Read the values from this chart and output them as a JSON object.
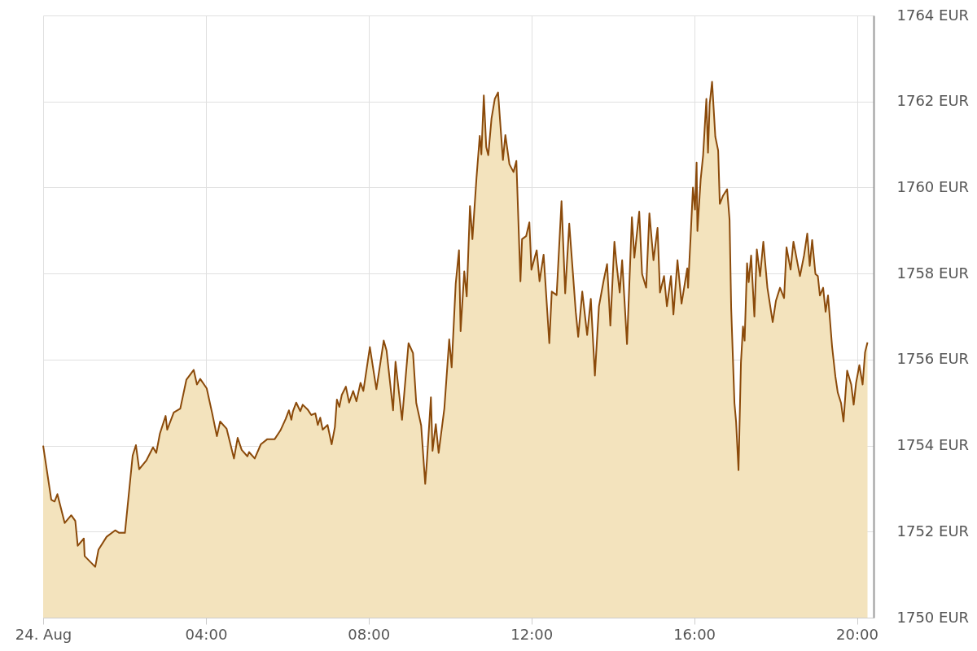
{
  "chart_data": {
    "type": "area",
    "xlim": [
      0,
      20.41
    ],
    "ylim": [
      1750,
      1764
    ],
    "xticks": [
      {
        "value": 0,
        "label": "24. Aug"
      },
      {
        "value": 4,
        "label": "04:00"
      },
      {
        "value": 8,
        "label": "08:00"
      },
      {
        "value": 12,
        "label": "12:00"
      },
      {
        "value": 16,
        "label": "16:00"
      },
      {
        "value": 20,
        "label": "20:00"
      }
    ],
    "yticks": [
      {
        "value": 1750,
        "label": "1750 EUR"
      },
      {
        "value": 1752,
        "label": "1752 EUR"
      },
      {
        "value": 1754,
        "label": "1754 EUR"
      },
      {
        "value": 1756,
        "label": "1756 EUR"
      },
      {
        "value": 1758,
        "label": "1758 EUR"
      },
      {
        "value": 1760,
        "label": "1760 EUR"
      },
      {
        "value": 1762,
        "label": "1762 EUR"
      },
      {
        "value": 1764,
        "label": "1764 EUR"
      }
    ],
    "grid": true,
    "series": [
      {
        "color": "#8b4a0a",
        "x": [
          0,
          0.2,
          0.28,
          0.35,
          0.53,
          0.69,
          0.79,
          0.85,
          1.0,
          1.02,
          1.28,
          1.36,
          1.56,
          1.77,
          1.87,
          2.01,
          2.2,
          2.28,
          2.36,
          2.54,
          2.7,
          2.78,
          2.87,
          3.01,
          3.05,
          3.21,
          3.37,
          3.52,
          3.7,
          3.78,
          3.86,
          4.02,
          4.15,
          4.27,
          4.35,
          4.51,
          4.69,
          4.78,
          4.88,
          5.02,
          5.06,
          5.2,
          5.35,
          5.51,
          5.69,
          5.83,
          5.96,
          6.04,
          6.1,
          6.14,
          6.22,
          6.32,
          6.38,
          6.5,
          6.59,
          6.69,
          6.75,
          6.81,
          6.87,
          6.99,
          7.09,
          7.17,
          7.22,
          7.28,
          7.34,
          7.44,
          7.52,
          7.62,
          7.7,
          7.8,
          7.87,
          8.03,
          8.19,
          8.37,
          8.44,
          8.6,
          8.66,
          8.82,
          8.98,
          9.09,
          9.17,
          9.29,
          9.39,
          9.43,
          9.53,
          9.57,
          9.65,
          9.72,
          9.86,
          9.98,
          10.04,
          10.14,
          10.22,
          10.26,
          10.35,
          10.41,
          10.49,
          10.55,
          10.65,
          10.73,
          10.77,
          10.83,
          10.89,
          10.94,
          11.02,
          11.1,
          11.18,
          11.3,
          11.36,
          11.46,
          11.56,
          11.63,
          11.73,
          11.77,
          11.87,
          11.95,
          12.0,
          12.13,
          12.2,
          12.3,
          12.44,
          12.5,
          12.62,
          12.74,
          12.83,
          12.93,
          13.09,
          13.15,
          13.25,
          13.37,
          13.46,
          13.56,
          13.66,
          13.78,
          13.86,
          13.94,
          14.04,
          14.09,
          14.17,
          14.23,
          14.35,
          14.47,
          14.53,
          14.65,
          14.72,
          14.82,
          14.9,
          15.0,
          15.1,
          15.16,
          15.26,
          15.33,
          15.43,
          15.49,
          15.59,
          15.69,
          15.83,
          15.85,
          15.91,
          15.97,
          16.02,
          16.06,
          16.08,
          16.16,
          16.22,
          16.3,
          16.34,
          16.38,
          16.44,
          16.52,
          16.59,
          16.63,
          16.71,
          16.81,
          16.87,
          16.91,
          16.99,
          17.03,
          17.09,
          17.15,
          17.2,
          17.24,
          17.3,
          17.34,
          17.4,
          17.48,
          17.54,
          17.62,
          17.7,
          17.8,
          17.93,
          18.01,
          18.11,
          18.21,
          18.27,
          18.37,
          18.44,
          18.6,
          18.7,
          18.78,
          18.84,
          18.9,
          18.98,
          19.04,
          19.09,
          19.17,
          19.23,
          19.29,
          19.39,
          19.47,
          19.53,
          19.61,
          19.67,
          19.76,
          19.86,
          19.92,
          19.98,
          20.06,
          20.14,
          20.2,
          20.26
        ],
        "values": [
          1754.0,
          1752.74,
          1752.7,
          1752.87,
          1752.2,
          1752.38,
          1752.25,
          1751.67,
          1751.84,
          1751.43,
          1751.18,
          1751.58,
          1751.88,
          1752.03,
          1751.97,
          1751.97,
          1753.77,
          1754.01,
          1753.45,
          1753.66,
          1753.96,
          1753.83,
          1754.28,
          1754.69,
          1754.37,
          1754.77,
          1754.86,
          1755.53,
          1755.76,
          1755.42,
          1755.55,
          1755.33,
          1754.77,
          1754.22,
          1754.56,
          1754.39,
          1753.7,
          1754.18,
          1753.9,
          1753.75,
          1753.85,
          1753.7,
          1754.03,
          1754.15,
          1754.15,
          1754.35,
          1754.62,
          1754.82,
          1754.6,
          1754.8,
          1755.0,
          1754.8,
          1754.95,
          1754.84,
          1754.71,
          1754.75,
          1754.48,
          1754.65,
          1754.37,
          1754.48,
          1754.03,
          1754.43,
          1755.07,
          1754.9,
          1755.18,
          1755.37,
          1755.0,
          1755.27,
          1755.03,
          1755.46,
          1755.27,
          1756.29,
          1755.31,
          1756.44,
          1756.21,
          1754.82,
          1755.95,
          1754.6,
          1756.38,
          1756.15,
          1754.99,
          1754.47,
          1753.11,
          1753.62,
          1755.12,
          1753.88,
          1754.5,
          1753.83,
          1754.86,
          1756.47,
          1755.82,
          1757.77,
          1758.54,
          1756.66,
          1758.05,
          1757.47,
          1759.57,
          1758.8,
          1760.22,
          1761.2,
          1760.77,
          1762.14,
          1760.94,
          1760.75,
          1761.61,
          1762.06,
          1762.21,
          1760.64,
          1761.22,
          1760.54,
          1760.36,
          1760.62,
          1757.82,
          1758.8,
          1758.87,
          1759.19,
          1758.09,
          1758.54,
          1757.82,
          1758.44,
          1756.38,
          1757.58,
          1757.5,
          1759.68,
          1757.54,
          1759.16,
          1757.11,
          1756.53,
          1757.58,
          1756.57,
          1757.41,
          1755.63,
          1757.24,
          1757.86,
          1758.22,
          1756.79,
          1758.74,
          1758.24,
          1757.56,
          1758.31,
          1756.36,
          1759.31,
          1758.37,
          1759.44,
          1757.99,
          1757.67,
          1759.4,
          1758.31,
          1759.06,
          1757.56,
          1757.94,
          1757.24,
          1757.94,
          1757.05,
          1758.31,
          1757.3,
          1758.12,
          1757.67,
          1758.8,
          1760.0,
          1759.49,
          1760.58,
          1758.99,
          1760.19,
          1760.75,
          1762.06,
          1760.81,
          1761.93,
          1762.46,
          1761.18,
          1760.86,
          1759.62,
          1759.81,
          1759.96,
          1759.25,
          1757.19,
          1754.99,
          1754.56,
          1753.43,
          1755.93,
          1756.77,
          1756.44,
          1758.24,
          1757.8,
          1758.42,
          1757.0,
          1758.56,
          1757.94,
          1758.74,
          1757.67,
          1756.87,
          1757.37,
          1757.67,
          1757.43,
          1758.61,
          1758.09,
          1758.74,
          1757.94,
          1758.42,
          1758.93,
          1758.18,
          1758.78,
          1757.99,
          1757.94,
          1757.49,
          1757.67,
          1757.11,
          1757.49,
          1756.3,
          1755.61,
          1755.23,
          1754.99,
          1754.56,
          1755.74,
          1755.42,
          1754.95,
          1755.46,
          1755.87,
          1755.42,
          1756.17,
          1756.4
        ]
      }
    ]
  }
}
